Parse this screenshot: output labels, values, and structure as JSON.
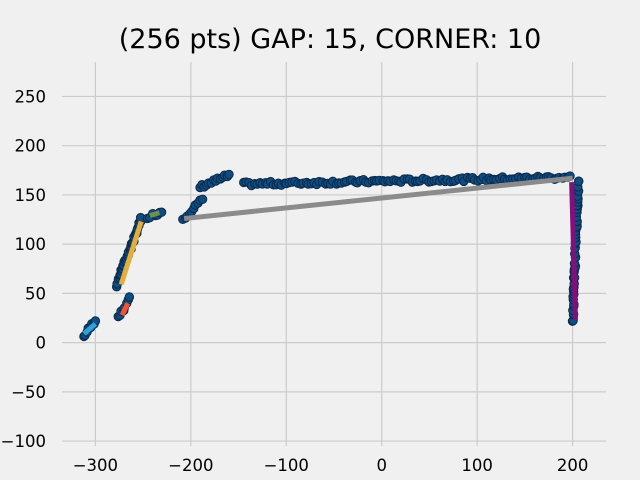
{
  "chart_data": {
    "type": "scatter",
    "title": "(256 pts) GAP: 15, CORNER: 10",
    "xlabel": "",
    "ylabel": "",
    "xlim": [
      -335,
      235
    ],
    "ylim": [
      -105,
      285
    ],
    "grid": true,
    "x_ticks": [
      -300,
      -200,
      -100,
      0,
      100,
      200
    ],
    "x_tick_labels": [
      "−300",
      "−200",
      "−100",
      "0",
      "100",
      "200"
    ],
    "y_ticks": [
      -100,
      -50,
      0,
      50,
      100,
      150,
      200,
      250
    ],
    "y_tick_labels": [
      "−100",
      "−50",
      "0",
      "50",
      "100",
      "150",
      "200",
      "250"
    ],
    "colors": {
      "background": "#f0f0f0",
      "grid": "#cbcbcb",
      "points_fill": "#0f4c81",
      "points_edge": "#0a2a4a"
    },
    "point_clusters": [
      {
        "x_start": -312,
        "x_end": -300,
        "y_start": 6,
        "y_end": 23,
        "count": 8
      },
      {
        "x_start": -278,
        "x_end": -252,
        "y_start": 58,
        "y_end": 125,
        "count": 40
      },
      {
        "x_start": -276,
        "x_end": -264,
        "y_start": 25,
        "y_end": 45,
        "count": 8
      },
      {
        "x_start": -245,
        "x_end": -230,
        "y_start": 128,
        "y_end": 133,
        "count": 7
      },
      {
        "x_start": -208,
        "x_end": -188,
        "y_start": 126,
        "y_end": 145,
        "count": 10
      },
      {
        "x_start": -190,
        "x_end": -160,
        "y_start": 158,
        "y_end": 170,
        "count": 14
      },
      {
        "x_start": -145,
        "x_end": 198,
        "y_start": 161,
        "y_end": 168,
        "count": 121
      },
      {
        "x_start": 200,
        "x_end": 206,
        "y_start": 21,
        "y_end": 165,
        "count": 48
      }
    ],
    "segments": [
      {
        "x": [
          -312,
          -300
        ],
        "y": [
          9,
          19
        ],
        "color": "#30a2da"
      },
      {
        "x": [
          -273,
          -252
        ],
        "y": [
          59,
          123
        ],
        "color": "#e5ae38"
      },
      {
        "x": [
          -272,
          -266
        ],
        "y": [
          28,
          40
        ],
        "color": "#fc4f30"
      },
      {
        "x": [
          -243,
          -233
        ],
        "y": [
          129,
          132
        ],
        "color": "#6d904f"
      },
      {
        "x": [
          -207,
          200
        ],
        "y": [
          126,
          167
        ],
        "color": "#8b8b8b"
      },
      {
        "x": [
          199,
          203
        ],
        "y": [
          163,
          23
        ],
        "color": "#810f7c"
      }
    ]
  }
}
